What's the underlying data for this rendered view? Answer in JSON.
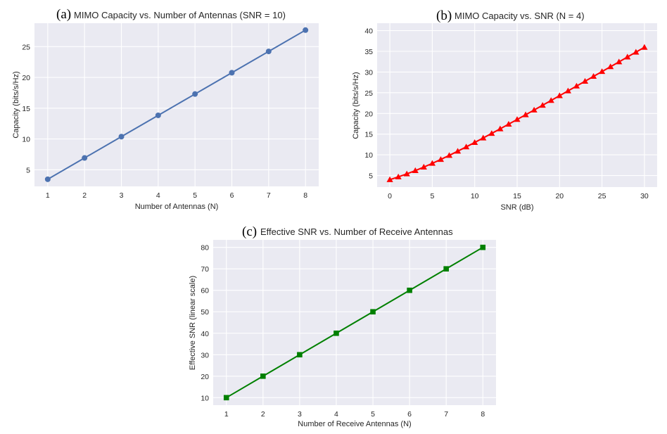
{
  "chart_data": [
    {
      "id": "a",
      "type": "line",
      "letter": "(a)",
      "title": "MIMO Capacity vs. Number of Antennas (SNR = 10)",
      "xlabel": "Number of Antennas (N)",
      "ylabel": "Capacity (bits/s/Hz)",
      "xlim": [
        0.64,
        8.36
      ],
      "ylim": [
        2.3,
        28.8
      ],
      "xticks": [
        1,
        2,
        3,
        4,
        5,
        6,
        7,
        8
      ],
      "yticks": [
        5,
        10,
        15,
        20,
        25
      ],
      "grid": true,
      "legend": "none",
      "color": "#4c72b0",
      "marker": "circle",
      "series": [
        {
          "x": [
            1,
            2,
            3,
            4,
            5,
            6,
            7,
            8
          ],
          "y": [
            3.46,
            6.92,
            10.38,
            13.84,
            17.3,
            20.76,
            24.22,
            27.68
          ]
        }
      ]
    },
    {
      "id": "b",
      "type": "line",
      "letter": "(b)",
      "title": "MIMO Capacity vs. SNR (N = 4)",
      "xlabel": "SNR (dB)",
      "ylabel": "Capacity (bits/s/Hz)",
      "xlim": [
        -1.5,
        31.5
      ],
      "ylim": [
        2.2,
        41.8
      ],
      "xticks": [
        0,
        5,
        10,
        15,
        20,
        25,
        30
      ],
      "yticks": [
        5,
        10,
        15,
        20,
        25,
        30,
        35,
        40
      ],
      "grid": true,
      "legend": "none",
      "color": "#ff0000",
      "marker": "triangle",
      "series": [
        {
          "x": [
            0,
            1,
            2,
            3,
            4,
            5,
            6,
            7,
            8,
            9,
            10,
            11,
            12,
            13,
            14,
            15,
            16,
            17,
            18,
            19,
            20,
            21,
            22,
            23,
            24,
            25,
            26,
            27,
            28,
            29,
            30
          ],
          "y": [
            4.0,
            4.67,
            5.4,
            6.19,
            7.04,
            7.94,
            8.88,
            9.86,
            10.88,
            11.92,
            12.98,
            14.07,
            15.17,
            16.28,
            17.41,
            18.54,
            19.68,
            20.82,
            21.97,
            23.13,
            24.29,
            25.45,
            26.62,
            27.78,
            28.95,
            30.12,
            31.29,
            32.46,
            33.64,
            34.81,
            35.98
          ]
        }
      ]
    },
    {
      "id": "c",
      "type": "line",
      "letter": "(c)",
      "title": "Effective SNR vs. Number of Receive Antennas",
      "xlabel": "Number of Receive Antennas (N)",
      "ylabel": "Effective SNR (linear scale)",
      "xlim": [
        0.64,
        8.36
      ],
      "ylim": [
        6.5,
        83.5
      ],
      "xticks": [
        1,
        2,
        3,
        4,
        5,
        6,
        7,
        8
      ],
      "yticks": [
        10,
        20,
        30,
        40,
        50,
        60,
        70,
        80
      ],
      "grid": true,
      "legend": "none",
      "color": "#008000",
      "marker": "square",
      "series": [
        {
          "x": [
            1,
            2,
            3,
            4,
            5,
            6,
            7,
            8
          ],
          "y": [
            10,
            20,
            30,
            40,
            50,
            60,
            70,
            80
          ]
        }
      ]
    }
  ]
}
